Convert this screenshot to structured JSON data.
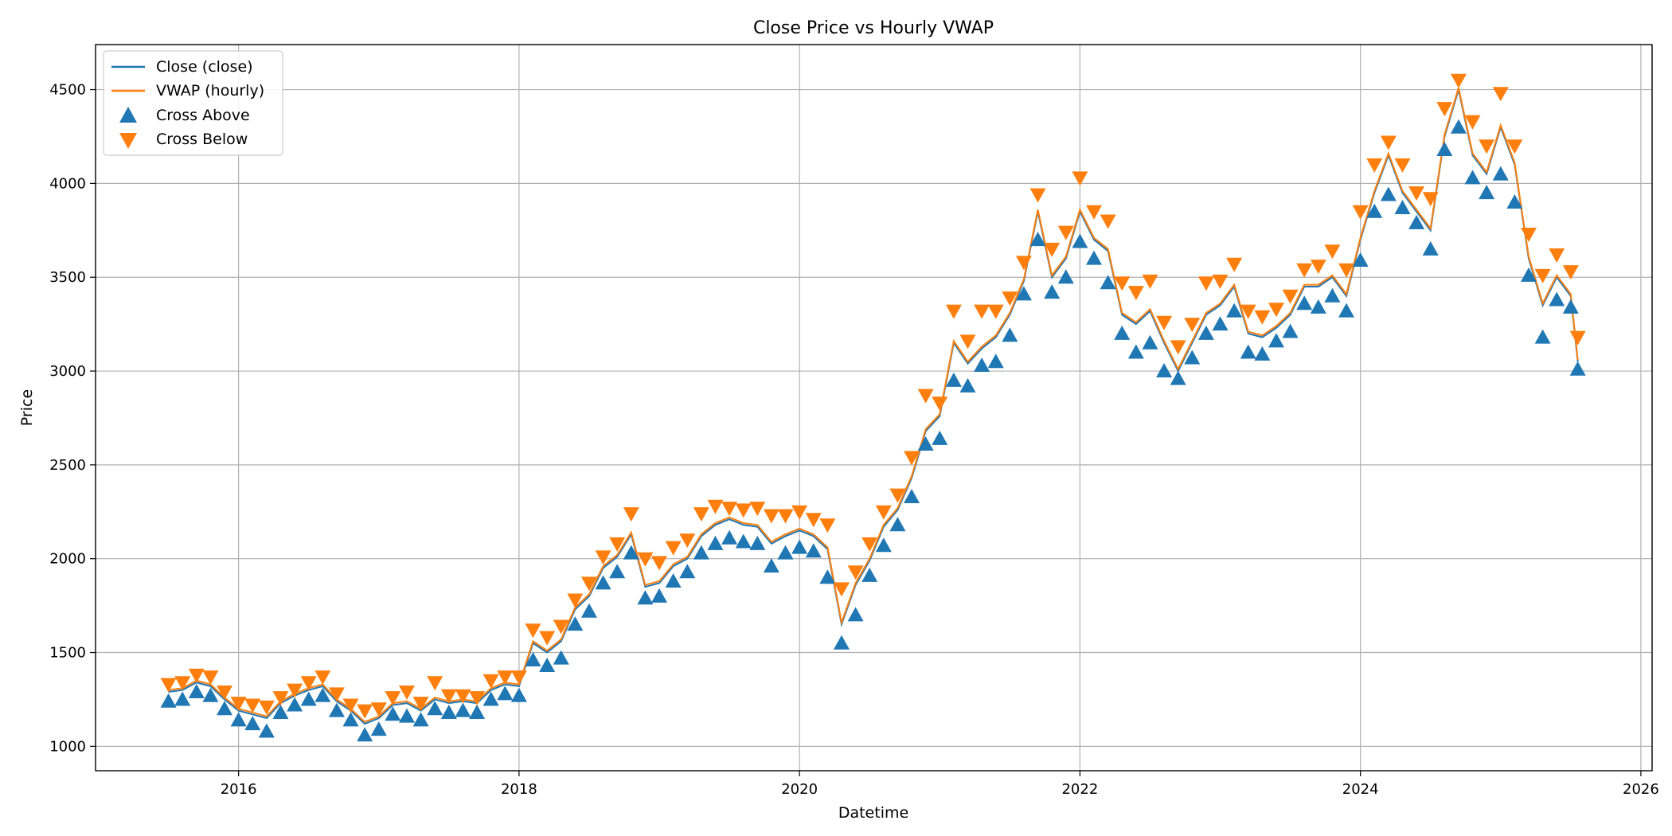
{
  "chart_data": {
    "type": "line",
    "title": "Close Price vs Hourly VWAP",
    "xlabel": "Datetime",
    "ylabel": "Price",
    "xlim": [
      2014.98,
      2026.08
    ],
    "ylim": [
      870,
      4740
    ],
    "xticks": [
      2016,
      2018,
      2020,
      2022,
      2024,
      2026
    ],
    "yticks": [
      1000,
      1500,
      2000,
      2500,
      3000,
      3500,
      4000,
      4500
    ],
    "grid": true,
    "legend_position": "top-left",
    "legend": [
      {
        "label": "Close (close)",
        "kind": "line",
        "color": "#1f77b4"
      },
      {
        "label": "VWAP (hourly)",
        "kind": "line",
        "color": "#ff7f0e"
      },
      {
        "label": "Cross Above",
        "kind": "marker-up",
        "color": "#1f77b4"
      },
      {
        "label": "Cross Below",
        "kind": "marker-down",
        "color": "#ff7f0e"
      }
    ],
    "series": [
      {
        "name": "Close (close)",
        "color": "#1f77b4",
        "x": [
          2015.5,
          2015.6,
          2015.7,
          2015.8,
          2015.9,
          2016.0,
          2016.1,
          2016.2,
          2016.3,
          2016.4,
          2016.5,
          2016.6,
          2016.7,
          2016.8,
          2016.9,
          2017.0,
          2017.1,
          2017.2,
          2017.3,
          2017.4,
          2017.5,
          2017.6,
          2017.7,
          2017.8,
          2017.9,
          2018.0,
          2018.1,
          2018.2,
          2018.3,
          2018.4,
          2018.5,
          2018.6,
          2018.7,
          2018.8,
          2018.9,
          2019.0,
          2019.1,
          2019.2,
          2019.3,
          2019.4,
          2019.5,
          2019.6,
          2019.7,
          2019.8,
          2019.9,
          2020.0,
          2020.1,
          2020.2,
          2020.3,
          2020.4,
          2020.5,
          2020.6,
          2020.7,
          2020.8,
          2020.9,
          2021.0,
          2021.1,
          2021.2,
          2021.3,
          2021.4,
          2021.5,
          2021.6,
          2021.7,
          2021.8,
          2021.9,
          2022.0,
          2022.1,
          2022.2,
          2022.3,
          2022.4,
          2022.5,
          2022.6,
          2022.7,
          2022.8,
          2022.9,
          2023.0,
          2023.1,
          2023.2,
          2023.3,
          2023.4,
          2023.5,
          2023.6,
          2023.7,
          2023.8,
          2023.9,
          2024.0,
          2024.1,
          2024.2,
          2024.3,
          2024.4,
          2024.5,
          2024.6,
          2024.7,
          2024.8,
          2024.9,
          2025.0,
          2025.1,
          2025.2,
          2025.3,
          2025.4,
          2025.5,
          2025.55
        ],
        "values": [
          1290,
          1300,
          1340,
          1320,
          1250,
          1190,
          1170,
          1150,
          1230,
          1270,
          1300,
          1320,
          1240,
          1190,
          1120,
          1150,
          1220,
          1230,
          1190,
          1250,
          1230,
          1240,
          1230,
          1300,
          1330,
          1320,
          1550,
          1500,
          1560,
          1730,
          1800,
          1950,
          2010,
          2130,
          1850,
          1870,
          1960,
          2000,
          2120,
          2180,
          2210,
          2180,
          2170,
          2080,
          2120,
          2150,
          2120,
          2050,
          1650,
          1860,
          1990,
          2170,
          2260,
          2430,
          2680,
          2760,
          3150,
          3040,
          3120,
          3180,
          3300,
          3480,
          3850,
          3500,
          3600,
          3850,
          3700,
          3640,
          3300,
          3250,
          3320,
          3150,
          3000,
          3150,
          3300,
          3350,
          3450,
          3200,
          3180,
          3230,
          3300,
          3450,
          3450,
          3500,
          3400,
          3700,
          3950,
          4150,
          3950,
          3850,
          3750,
          4250,
          4500,
          4150,
          4050,
          4300,
          4100,
          3600,
          3350,
          3500,
          3400,
          3050
        ]
      },
      {
        "name": "VWAP (hourly)",
        "color": "#ff7f0e",
        "x": [
          2015.5,
          2015.6,
          2015.7,
          2015.8,
          2015.9,
          2016.0,
          2016.1,
          2016.2,
          2016.3,
          2016.4,
          2016.5,
          2016.6,
          2016.7,
          2016.8,
          2016.9,
          2017.0,
          2017.1,
          2017.2,
          2017.3,
          2017.4,
          2017.5,
          2017.6,
          2017.7,
          2017.8,
          2017.9,
          2018.0,
          2018.1,
          2018.2,
          2018.3,
          2018.4,
          2018.5,
          2018.6,
          2018.7,
          2018.8,
          2018.9,
          2019.0,
          2019.1,
          2019.2,
          2019.3,
          2019.4,
          2019.5,
          2019.6,
          2019.7,
          2019.8,
          2019.9,
          2020.0,
          2020.1,
          2020.2,
          2020.3,
          2020.4,
          2020.5,
          2020.6,
          2020.7,
          2020.8,
          2020.9,
          2021.0,
          2021.1,
          2021.2,
          2021.3,
          2021.4,
          2021.5,
          2021.6,
          2021.7,
          2021.8,
          2021.9,
          2022.0,
          2022.1,
          2022.2,
          2022.3,
          2022.4,
          2022.5,
          2022.6,
          2022.7,
          2022.8,
          2022.9,
          2023.0,
          2023.1,
          2023.2,
          2023.3,
          2023.4,
          2023.5,
          2023.6,
          2023.7,
          2023.8,
          2023.9,
          2024.0,
          2024.1,
          2024.2,
          2024.3,
          2024.4,
          2024.5,
          2024.6,
          2024.7,
          2024.8,
          2024.9,
          2025.0,
          2025.1,
          2025.2,
          2025.3,
          2025.4,
          2025.5,
          2025.55
        ],
        "values": [
          1300,
          1310,
          1350,
          1330,
          1260,
          1200,
          1180,
          1160,
          1240,
          1280,
          1310,
          1330,
          1250,
          1200,
          1130,
          1160,
          1230,
          1240,
          1200,
          1260,
          1240,
          1250,
          1240,
          1310,
          1340,
          1330,
          1560,
          1510,
          1570,
          1740,
          1810,
          1960,
          2020,
          2140,
          1860,
          1880,
          1970,
          2010,
          2130,
          2190,
          2220,
          2190,
          2180,
          2090,
          2130,
          2160,
          2130,
          2060,
          1660,
          1870,
          2000,
          2180,
          2270,
          2440,
          2690,
          2770,
          3160,
          3050,
          3130,
          3190,
          3310,
          3490,
          3860,
          3510,
          3610,
          3860,
          3710,
          3650,
          3310,
          3260,
          3330,
          3160,
          3010,
          3160,
          3310,
          3360,
          3460,
          3210,
          3190,
          3240,
          3310,
          3460,
          3460,
          3510,
          3410,
          3710,
          3960,
          4160,
          3960,
          3860,
          3760,
          4260,
          4510,
          4160,
          4060,
          4310,
          4110,
          3610,
          3360,
          3510,
          3410,
          3060
        ]
      },
      {
        "name": "Cross Above",
        "color": "#1f77b4",
        "marker": "triangle-up",
        "x": [
          2015.5,
          2015.6,
          2015.7,
          2015.8,
          2015.9,
          2016.0,
          2016.1,
          2016.2,
          2016.3,
          2016.4,
          2016.5,
          2016.6,
          2016.7,
          2016.8,
          2016.9,
          2017.0,
          2017.1,
          2017.2,
          2017.3,
          2017.4,
          2017.5,
          2017.6,
          2017.7,
          2017.8,
          2017.9,
          2018.0,
          2018.1,
          2018.2,
          2018.3,
          2018.4,
          2018.5,
          2018.6,
          2018.7,
          2018.8,
          2018.9,
          2019.0,
          2019.1,
          2019.2,
          2019.3,
          2019.4,
          2019.5,
          2019.6,
          2019.7,
          2019.8,
          2019.9,
          2020.0,
          2020.1,
          2020.2,
          2020.3,
          2020.4,
          2020.5,
          2020.6,
          2020.7,
          2020.8,
          2020.9,
          2021.0,
          2021.1,
          2021.2,
          2021.3,
          2021.4,
          2021.5,
          2021.6,
          2021.7,
          2021.8,
          2021.9,
          2022.0,
          2022.1,
          2022.2,
          2022.3,
          2022.4,
          2022.5,
          2022.6,
          2022.7,
          2022.8,
          2022.9,
          2023.0,
          2023.1,
          2023.2,
          2023.3,
          2023.4,
          2023.5,
          2023.6,
          2023.7,
          2023.8,
          2023.9,
          2024.0,
          2024.1,
          2024.2,
          2024.3,
          2024.4,
          2024.5,
          2024.6,
          2024.7,
          2024.8,
          2024.9,
          2025.0,
          2025.1,
          2025.2,
          2025.3,
          2025.4,
          2025.5,
          2025.55
        ],
        "values": [
          1240,
          1250,
          1290,
          1270,
          1200,
          1140,
          1120,
          1080,
          1180,
          1220,
          1250,
          1270,
          1190,
          1140,
          1060,
          1090,
          1170,
          1160,
          1140,
          1200,
          1180,
          1190,
          1180,
          1250,
          1280,
          1270,
          1460,
          1430,
          1470,
          1650,
          1720,
          1870,
          1930,
          2030,
          1790,
          1800,
          1880,
          1930,
          2030,
          2080,
          2110,
          2090,
          2080,
          1960,
          2030,
          2060,
          2040,
          1900,
          1550,
          1700,
          1910,
          2070,
          2180,
          2330,
          2610,
          2640,
          2950,
          2920,
          3030,
          3050,
          3190,
          3410,
          3700,
          3420,
          3500,
          3690,
          3600,
          3470,
          3200,
          3100,
          3150,
          3000,
          2960,
          3070,
          3200,
          3250,
          3320,
          3100,
          3090,
          3160,
          3210,
          3360,
          3340,
          3400,
          3320,
          3590,
          3850,
          3940,
          3870,
          3790,
          3650,
          4180,
          4300,
          4030,
          3950,
          4050,
          3900,
          3510,
          3180,
          3380,
          3340,
          3010
        ]
      },
      {
        "name": "Cross Below",
        "color": "#ff7f0e",
        "marker": "triangle-down",
        "x": [
          2015.5,
          2015.6,
          2015.7,
          2015.8,
          2015.9,
          2016.0,
          2016.1,
          2016.2,
          2016.3,
          2016.4,
          2016.5,
          2016.6,
          2016.7,
          2016.8,
          2016.9,
          2017.0,
          2017.1,
          2017.2,
          2017.3,
          2017.4,
          2017.5,
          2017.6,
          2017.7,
          2017.8,
          2017.9,
          2018.0,
          2018.1,
          2018.2,
          2018.3,
          2018.4,
          2018.5,
          2018.6,
          2018.7,
          2018.8,
          2018.9,
          2019.0,
          2019.1,
          2019.2,
          2019.3,
          2019.4,
          2019.5,
          2019.6,
          2019.7,
          2019.8,
          2019.9,
          2020.0,
          2020.1,
          2020.2,
          2020.3,
          2020.4,
          2020.5,
          2020.6,
          2020.7,
          2020.8,
          2020.9,
          2021.0,
          2021.1,
          2021.2,
          2021.3,
          2021.4,
          2021.5,
          2021.6,
          2021.7,
          2021.8,
          2021.9,
          2022.0,
          2022.1,
          2022.2,
          2022.3,
          2022.4,
          2022.5,
          2022.6,
          2022.7,
          2022.8,
          2022.9,
          2023.0,
          2023.1,
          2023.2,
          2023.3,
          2023.4,
          2023.5,
          2023.6,
          2023.7,
          2023.8,
          2023.9,
          2024.0,
          2024.1,
          2024.2,
          2024.3,
          2024.4,
          2024.5,
          2024.6,
          2024.7,
          2024.8,
          2024.9,
          2025.0,
          2025.1,
          2025.2,
          2025.3,
          2025.4,
          2025.5,
          2025.55
        ],
        "values": [
          1330,
          1340,
          1380,
          1370,
          1290,
          1230,
          1220,
          1210,
          1260,
          1300,
          1340,
          1370,
          1280,
          1220,
          1190,
          1200,
          1260,
          1290,
          1230,
          1340,
          1270,
          1270,
          1260,
          1350,
          1370,
          1370,
          1620,
          1580,
          1640,
          1780,
          1870,
          2010,
          2080,
          2240,
          2000,
          1980,
          2060,
          2100,
          2240,
          2280,
          2270,
          2260,
          2270,
          2230,
          2230,
          2250,
          2210,
          2180,
          1840,
          1930,
          2080,
          2250,
          2340,
          2540,
          2870,
          2830,
          3320,
          3160,
          3320,
          3320,
          3390,
          3580,
          3940,
          3650,
          3740,
          4030,
          3850,
          3800,
          3470,
          3420,
          3480,
          3260,
          3130,
          3250,
          3470,
          3480,
          3570,
          3320,
          3290,
          3330,
          3400,
          3540,
          3560,
          3640,
          3540,
          3850,
          4100,
          4220,
          4100,
          3950,
          3920,
          4400,
          4550,
          4330,
          4200,
          4480,
          4200,
          3730,
          3510,
          3620,
          3530,
          3180
        ]
      }
    ]
  }
}
